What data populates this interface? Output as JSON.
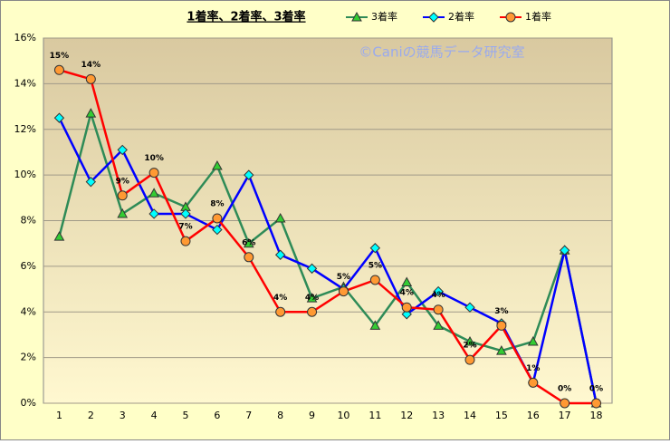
{
  "chart_data": {
    "type": "line",
    "title": "1着率、2着率、3着率",
    "annotation": "©Caniの競馬データ研究室",
    "categories": [
      "1",
      "2",
      "3",
      "4",
      "5",
      "6",
      "7",
      "8",
      "9",
      "10",
      "11",
      "12",
      "13",
      "14",
      "15",
      "16",
      "17",
      "18"
    ],
    "series": [
      {
        "name": "3着率",
        "color": "#2e8b57",
        "marker": "triangle",
        "marker_color": "#33cc33",
        "values": [
          7.3,
          12.7,
          8.3,
          9.2,
          8.6,
          10.4,
          7.0,
          8.1,
          4.6,
          5.1,
          3.4,
          5.3,
          3.4,
          2.7,
          2.3,
          2.7,
          6.7,
          0
        ]
      },
      {
        "name": "2着率",
        "color": "#0000ff",
        "marker": "diamond",
        "marker_color": "#00ffff",
        "values": [
          12.5,
          9.7,
          11.1,
          8.3,
          8.3,
          7.6,
          10.0,
          6.5,
          5.9,
          5.0,
          6.8,
          3.9,
          4.9,
          4.2,
          3.5,
          0.9,
          6.7,
          0
        ]
      },
      {
        "name": "1着率",
        "color": "#ff0000",
        "marker": "circle",
        "marker_color": "#ff9933",
        "values": [
          14.6,
          14.2,
          9.1,
          10.1,
          7.1,
          8.1,
          6.4,
          4.0,
          4.0,
          4.9,
          5.4,
          4.2,
          4.1,
          1.9,
          3.4,
          0.9,
          0,
          0
        ],
        "value_labels": [
          "15%",
          "14%",
          "9%",
          "10%",
          "7%",
          "8%",
          "6%",
          "4%",
          "4%",
          "5%",
          "5%",
          "4%",
          "4%",
          "2%",
          "3%",
          "1%",
          "0%",
          "0%"
        ]
      }
    ],
    "ylim": [
      0,
      16
    ],
    "yticks": [
      {
        "value": 0,
        "label": "0%"
      },
      {
        "value": 2,
        "label": "2%"
      },
      {
        "value": 4,
        "label": "4%"
      },
      {
        "value": 6,
        "label": "6%"
      },
      {
        "value": 8,
        "label": "8%"
      },
      {
        "value": 10,
        "label": "10%"
      },
      {
        "value": 12,
        "label": "12%"
      },
      {
        "value": 14,
        "label": "14%"
      },
      {
        "value": 16,
        "label": "16%"
      }
    ],
    "grid": true
  }
}
